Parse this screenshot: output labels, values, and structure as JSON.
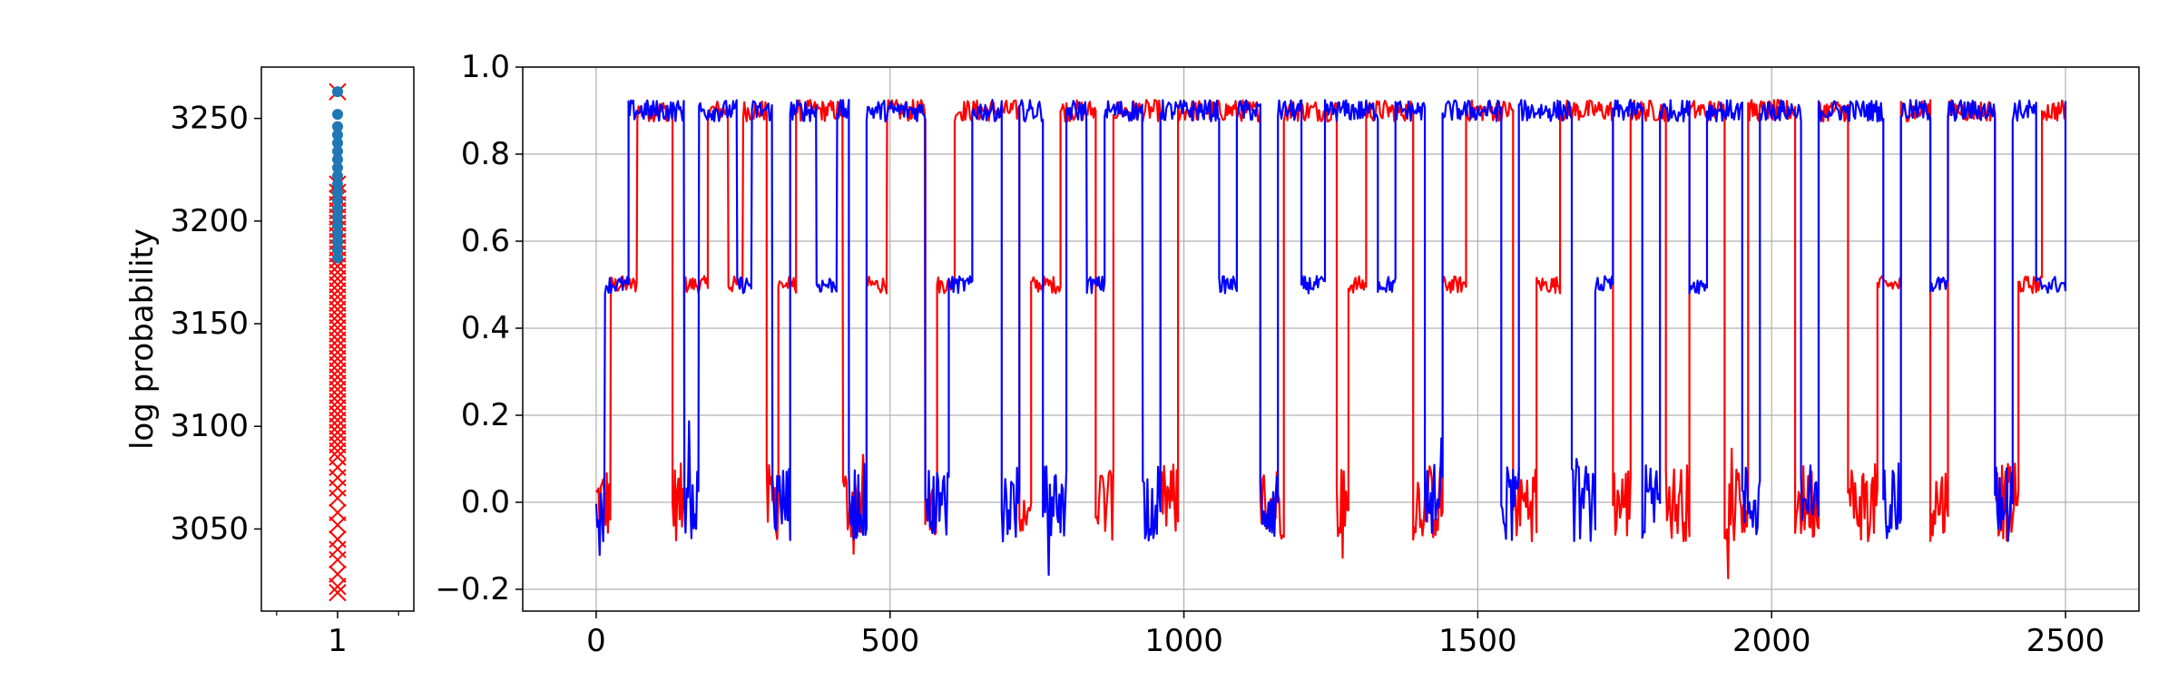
{
  "chart_data": [
    {
      "type": "scatter",
      "title": "",
      "xlabel": "",
      "ylabel": "log probability",
      "xlim": [
        0.5,
        1.5
      ],
      "ylim": [
        3010,
        3275
      ],
      "xticks": [
        1
      ],
      "xtick_labels": [
        "1"
      ],
      "yticks": [
        3050,
        3100,
        3150,
        3200,
        3250
      ],
      "ytick_labels": [
        "3050",
        "3100",
        "3150",
        "3200",
        "3250"
      ],
      "grid": false,
      "series": [
        {
          "marker": "x",
          "color": "#ff0000",
          "x": 1,
          "values": [
            3263,
            3218,
            3214,
            3211,
            3208,
            3205,
            3202,
            3199,
            3196,
            3193,
            3190,
            3187,
            3184,
            3181,
            3178,
            3175,
            3172,
            3169,
            3166,
            3163,
            3160,
            3157,
            3154,
            3151,
            3148,
            3145,
            3142,
            3139,
            3136,
            3133,
            3130,
            3127,
            3124,
            3121,
            3118,
            3115,
            3112,
            3109,
            3106,
            3103,
            3100,
            3097,
            3094,
            3091,
            3088,
            3085,
            3080,
            3075,
            3070,
            3065,
            3058,
            3052,
            3045,
            3040,
            3035,
            3028,
            3022,
            3019
          ]
        },
        {
          "marker": "o",
          "color": "#1f77b4",
          "x": 1,
          "values": [
            3263,
            3252,
            3246,
            3242,
            3238,
            3234,
            3230,
            3226,
            3222,
            3218,
            3214,
            3210,
            3206,
            3202,
            3198,
            3194,
            3190,
            3186,
            3182
          ]
        }
      ]
    },
    {
      "type": "line",
      "title": "",
      "xlabel": "",
      "ylabel": "",
      "xlim": [
        -125,
        2625
      ],
      "ylim": [
        -0.25,
        1.0
      ],
      "xticks": [
        0,
        500,
        1000,
        1500,
        2000,
        2500
      ],
      "xtick_labels": [
        "0",
        "500",
        "1000",
        "1500",
        "2000",
        "2500"
      ],
      "yticks": [
        -0.2,
        0.0,
        0.2,
        0.4,
        0.6,
        0.8,
        1.0
      ],
      "ytick_labels": [
        "−0.2",
        "0.0",
        "0.2",
        "0.4",
        "0.6",
        "0.8",
        "1.0"
      ],
      "grid": true,
      "series": [
        {
          "color": "#ff0000",
          "levels": [
            0.9,
            0.5,
            0.0
          ],
          "segments": [
            [
              0,
              0.0
            ],
            [
              25,
              0.5
            ],
            [
              70,
              0.9
            ],
            [
              130,
              0.0
            ],
            [
              150,
              0.5
            ],
            [
              190,
              0.9
            ],
            [
              225,
              0.5
            ],
            [
              250,
              0.9
            ],
            [
              290,
              0.0
            ],
            [
              310,
              0.5
            ],
            [
              340,
              0.9
            ],
            [
              385,
              0.9
            ],
            [
              420,
              0.0
            ],
            [
              460,
              0.5
            ],
            [
              495,
              0.9
            ],
            [
              560,
              0.0
            ],
            [
              580,
              0.5
            ],
            [
              610,
              0.9
            ],
            [
              720,
              0.0
            ],
            [
              740,
              0.5
            ],
            [
              790,
              0.9
            ],
            [
              850,
              0.0
            ],
            [
              880,
              0.9
            ],
            [
              960,
              0.0
            ],
            [
              990,
              0.9
            ],
            [
              1050,
              0.9
            ],
            [
              1130,
              0.0
            ],
            [
              1170,
              0.9
            ],
            [
              1260,
              0.0
            ],
            [
              1280,
              0.5
            ],
            [
              1310,
              0.9
            ],
            [
              1390,
              0.0
            ],
            [
              1440,
              0.5
            ],
            [
              1480,
              0.9
            ],
            [
              1560,
              0.0
            ],
            [
              1600,
              0.5
            ],
            [
              1640,
              0.9
            ],
            [
              1730,
              0.0
            ],
            [
              1760,
              0.9
            ],
            [
              1820,
              0.0
            ],
            [
              1860,
              0.9
            ],
            [
              1920,
              0.0
            ],
            [
              1960,
              0.9
            ],
            [
              2040,
              0.0
            ],
            [
              2080,
              0.9
            ],
            [
              2130,
              0.0
            ],
            [
              2180,
              0.5
            ],
            [
              2220,
              0.9
            ],
            [
              2270,
              0.0
            ],
            [
              2300,
              0.9
            ],
            [
              2380,
              0.0
            ],
            [
              2420,
              0.5
            ],
            [
              2460,
              0.9
            ],
            [
              2500,
              0.9
            ]
          ]
        },
        {
          "color": "#0000ff",
          "levels": [
            0.9,
            0.5,
            0.0
          ],
          "segments": [
            [
              0,
              0.0
            ],
            [
              15,
              0.5
            ],
            [
              55,
              0.9
            ],
            [
              95,
              0.9
            ],
            [
              150,
              0.0
            ],
            [
              175,
              0.9
            ],
            [
              215,
              0.9
            ],
            [
              240,
              0.5
            ],
            [
              265,
              0.9
            ],
            [
              300,
              0.0
            ],
            [
              330,
              0.9
            ],
            [
              375,
              0.5
            ],
            [
              410,
              0.9
            ],
            [
              430,
              0.0
            ],
            [
              460,
              0.9
            ],
            [
              500,
              0.9
            ],
            [
              560,
              0.0
            ],
            [
              600,
              0.5
            ],
            [
              640,
              0.9
            ],
            [
              690,
              0.0
            ],
            [
              720,
              0.9
            ],
            [
              760,
              0.0
            ],
            [
              800,
              0.9
            ],
            [
              835,
              0.5
            ],
            [
              865,
              0.9
            ],
            [
              930,
              0.0
            ],
            [
              960,
              0.9
            ],
            [
              1010,
              0.9
            ],
            [
              1060,
              0.5
            ],
            [
              1090,
              0.9
            ],
            [
              1130,
              0.0
            ],
            [
              1160,
              0.9
            ],
            [
              1200,
              0.5
            ],
            [
              1240,
              0.9
            ],
            [
              1290,
              0.9
            ],
            [
              1330,
              0.5
            ],
            [
              1360,
              0.9
            ],
            [
              1410,
              0.0
            ],
            [
              1440,
              0.9
            ],
            [
              1500,
              0.9
            ],
            [
              1540,
              0.0
            ],
            [
              1570,
              0.9
            ],
            [
              1620,
              0.9
            ],
            [
              1660,
              0.0
            ],
            [
              1700,
              0.5
            ],
            [
              1730,
              0.9
            ],
            [
              1780,
              0.0
            ],
            [
              1810,
              0.9
            ],
            [
              1860,
              0.5
            ],
            [
              1890,
              0.9
            ],
            [
              1950,
              0.0
            ],
            [
              1980,
              0.9
            ],
            [
              2050,
              0.0
            ],
            [
              2080,
              0.9
            ],
            [
              2130,
              0.9
            ],
            [
              2190,
              0.0
            ],
            [
              2220,
              0.9
            ],
            [
              2270,
              0.5
            ],
            [
              2300,
              0.9
            ],
            [
              2340,
              0.9
            ],
            [
              2380,
              0.0
            ],
            [
              2410,
              0.9
            ],
            [
              2450,
              0.5
            ],
            [
              2500,
              0.9
            ]
          ]
        }
      ]
    }
  ]
}
